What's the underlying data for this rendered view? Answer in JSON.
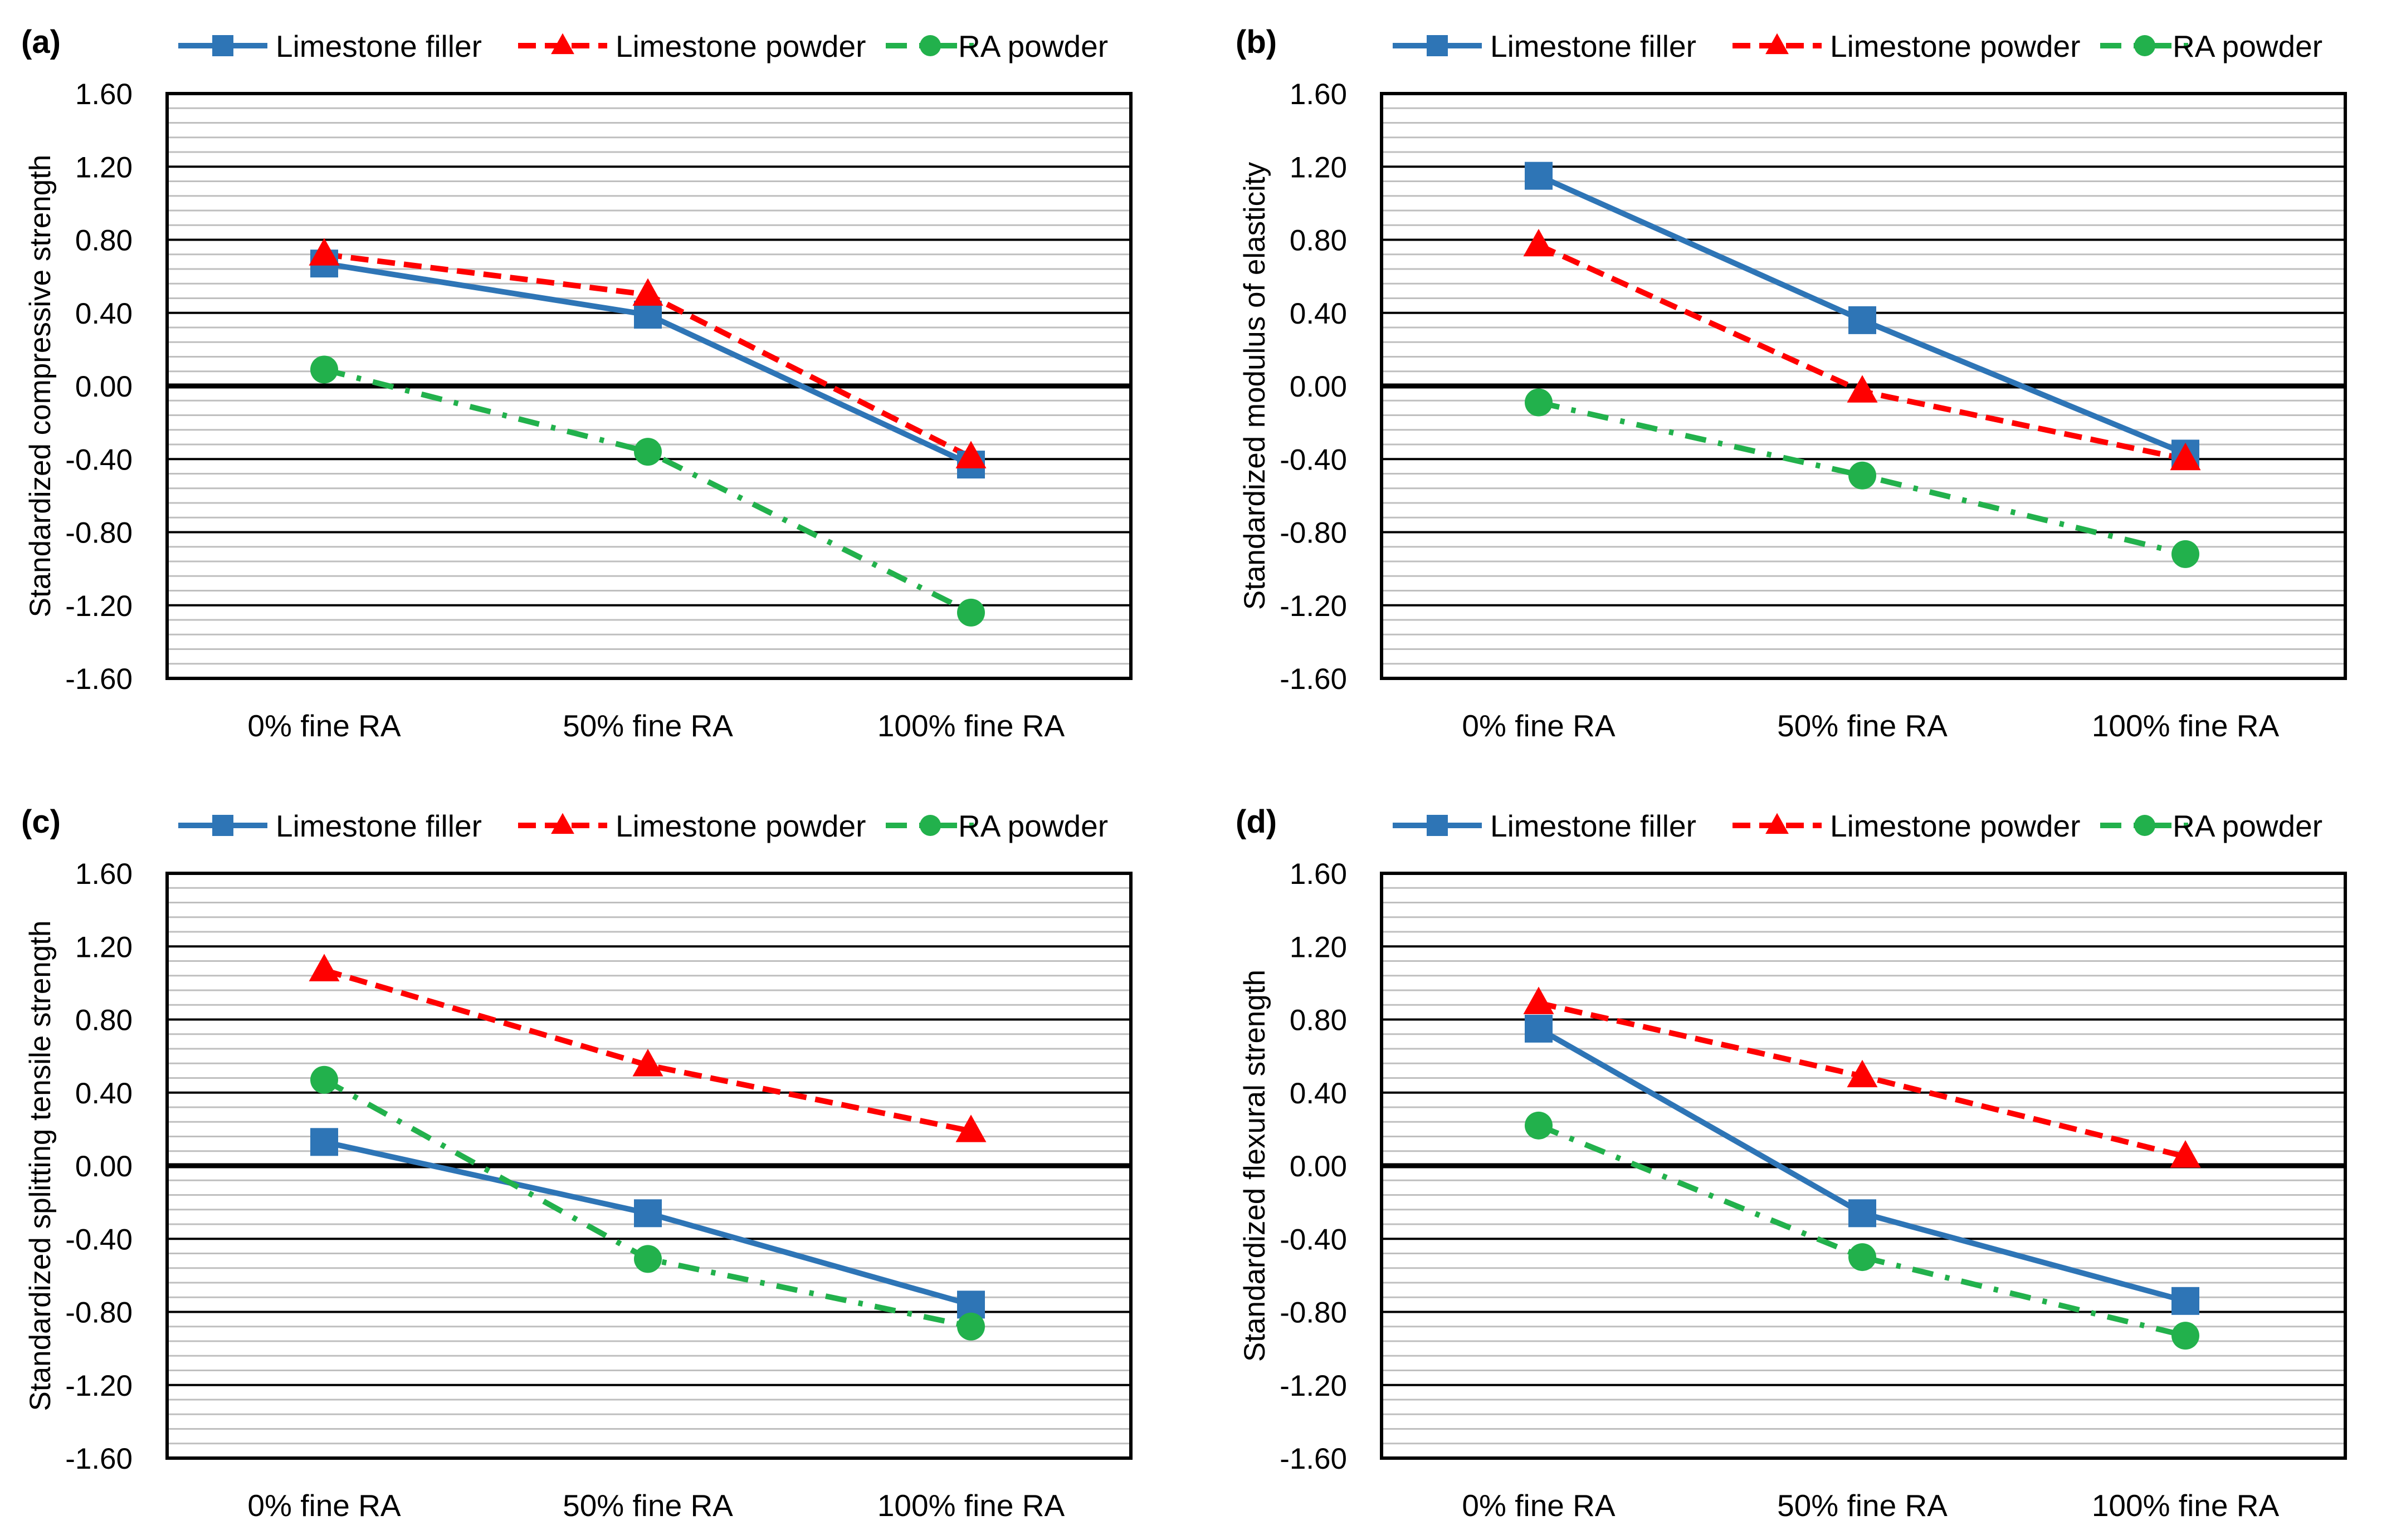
{
  "chart_data": [
    {
      "type": "line",
      "panel_label": "(a)",
      "ylabel": "Standardized compressive strength",
      "categories": [
        "0% fine RA",
        "50% fine RA",
        "100% fine RA"
      ],
      "ylim": [
        -1.6,
        1.6
      ],
      "y_ticks": [
        "1.60",
        "1.20",
        "0.80",
        "0.40",
        "0.00",
        "-0.40",
        "-0.80",
        "-1.20",
        "-1.60"
      ],
      "series": [
        {
          "name": "Limestone filler",
          "values": [
            0.67,
            0.39,
            -0.43
          ]
        },
        {
          "name": "Limestone powder",
          "values": [
            0.72,
            0.5,
            -0.39
          ]
        },
        {
          "name": "RA powder",
          "values": [
            0.09,
            -0.36,
            -1.24
          ]
        }
      ]
    },
    {
      "type": "line",
      "panel_label": "(b)",
      "ylabel": "Standardized modulus of elasticity",
      "categories": [
        "0% fine RA",
        "50% fine RA",
        "100% fine RA"
      ],
      "ylim": [
        -1.6,
        1.6
      ],
      "y_ticks": [
        "1.60",
        "1.20",
        "0.80",
        "0.40",
        "0.00",
        "-0.40",
        "-0.80",
        "-1.20",
        "-1.60"
      ],
      "series": [
        {
          "name": "Limestone filler",
          "values": [
            1.15,
            0.36,
            -0.37
          ]
        },
        {
          "name": "Limestone powder",
          "values": [
            0.77,
            -0.03,
            -0.4
          ]
        },
        {
          "name": "RA powder",
          "values": [
            -0.09,
            -0.49,
            -0.92
          ]
        }
      ]
    },
    {
      "type": "line",
      "panel_label": "(c)",
      "ylabel": "Standardized splitting tensile strength",
      "categories": [
        "0% fine RA",
        "50% fine RA",
        "100% fine RA"
      ],
      "ylim": [
        -1.6,
        1.6
      ],
      "y_ticks": [
        "1.60",
        "1.20",
        "0.80",
        "0.40",
        "0.00",
        "-0.40",
        "-0.80",
        "-1.20",
        "-1.60"
      ],
      "series": [
        {
          "name": "Limestone filler",
          "values": [
            0.13,
            -0.26,
            -0.76
          ]
        },
        {
          "name": "Limestone powder",
          "values": [
            1.07,
            0.55,
            0.19
          ]
        },
        {
          "name": "RA powder",
          "values": [
            0.47,
            -0.51,
            -0.88
          ]
        }
      ]
    },
    {
      "type": "line",
      "panel_label": "(d)",
      "ylabel": "Standardized flexural strength",
      "categories": [
        "0% fine RA",
        "50% fine RA",
        "100% fine RA"
      ],
      "ylim": [
        -1.6,
        1.6
      ],
      "y_ticks": [
        "1.60",
        "1.20",
        "0.80",
        "0.40",
        "0.00",
        "-0.40",
        "-0.80",
        "-1.20",
        "-1.60"
      ],
      "series": [
        {
          "name": "Limestone filler",
          "values": [
            0.75,
            -0.26,
            -0.74
          ]
        },
        {
          "name": "Limestone powder",
          "values": [
            0.89,
            0.49,
            0.05
          ]
        },
        {
          "name": "RA powder",
          "values": [
            0.22,
            -0.5,
            -0.93
          ]
        }
      ]
    }
  ],
  "styles": {
    "Limestone filler": {
      "color": "#2E75B6",
      "marker": "square",
      "dash": "solid"
    },
    "Limestone powder": {
      "color": "#FF0000",
      "marker": "triangle",
      "dash": "dashed"
    },
    "RA powder": {
      "color": "#22B14C",
      "marker": "circle",
      "dash": "dash-dot"
    }
  }
}
